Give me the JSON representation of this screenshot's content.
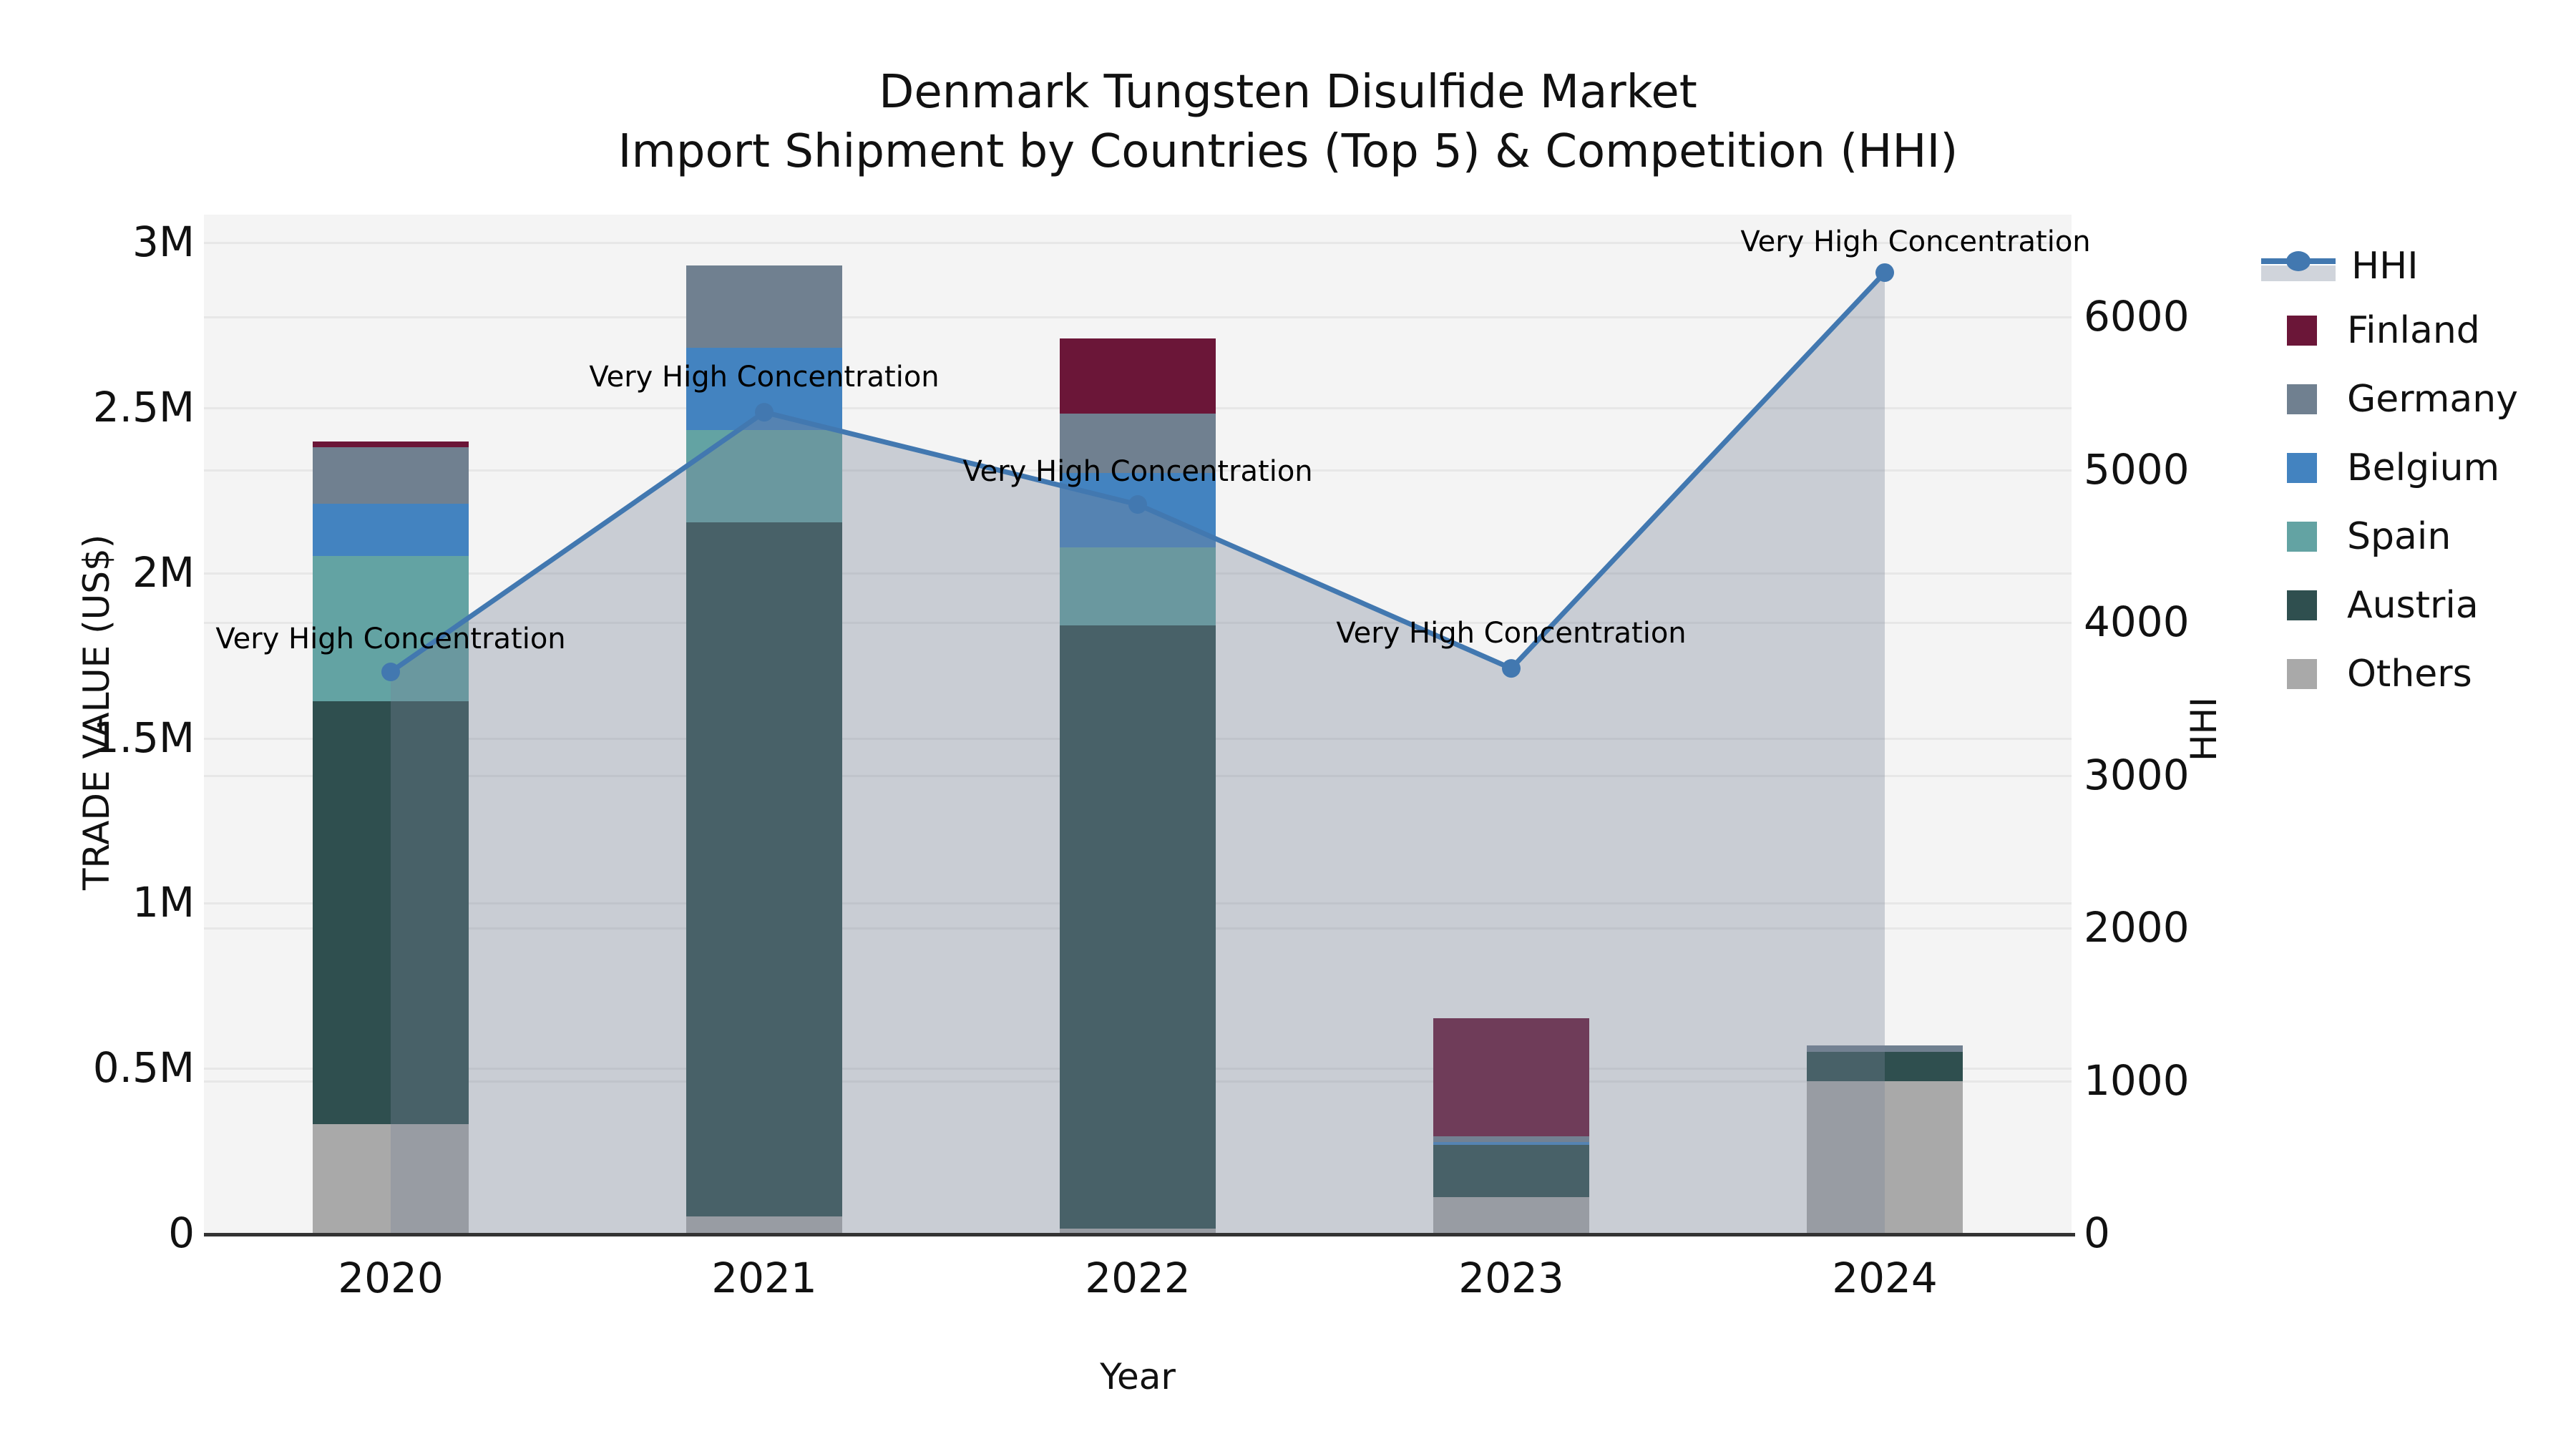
{
  "title_line1": "Denmark Tungsten Disulfide Market",
  "title_line2": "Import Shipment by Countries (Top 5) & Competition (HHI)",
  "axes": {
    "x_label": "Year",
    "y_left_label": "TRADE VALUE (US$)",
    "y_right_label": "HHI",
    "y_left_ticks": [
      "0",
      "0.5M",
      "1M",
      "1.5M",
      "2M",
      "2.5M",
      "3M"
    ],
    "y_left_tick_values": [
      0,
      0.5,
      1,
      1.5,
      2,
      2.5,
      3
    ],
    "y_right_ticks": [
      "0",
      "1000",
      "2000",
      "3000",
      "4000",
      "5000",
      "6000"
    ],
    "y_right_tick_values": [
      0,
      1000,
      2000,
      3000,
      4000,
      5000,
      6000
    ]
  },
  "chart_data": {
    "type": "bar+line",
    "categories": [
      "2020",
      "2021",
      "2022",
      "2023",
      "2024"
    ],
    "bar_unit": "M US$",
    "stack_order_bottom_to_top": [
      "Others",
      "Austria",
      "Spain",
      "Belgium",
      "Germany",
      "Finland"
    ],
    "series": [
      {
        "name": "Finland",
        "values": [
          0.018,
          0,
          0.228,
          0.357,
          0
        ]
      },
      {
        "name": "Germany",
        "values": [
          0.17,
          0.249,
          0.18,
          0.018,
          0.019
        ]
      },
      {
        "name": "Belgium",
        "values": [
          0.158,
          0.249,
          0.225,
          0.009,
          0
        ]
      },
      {
        "name": "Spain",
        "values": [
          0.44,
          0.279,
          0.235,
          0,
          0
        ]
      },
      {
        "name": "Austria",
        "values": [
          1.281,
          2.101,
          1.826,
          0.158,
          0.089
        ]
      },
      {
        "name": "Others",
        "values": [
          0.329,
          0.05,
          0.014,
          0.108,
          0.459
        ]
      }
    ],
    "bar_totals": [
      2.396,
      2.928,
      2.708,
      0.65,
      0.567
    ],
    "line_series": {
      "name": "HHI",
      "values": [
        3672,
        5372,
        4768,
        3695,
        6286
      ],
      "axis": "right"
    },
    "annotation_text": "Very High Concentration",
    "annotations": [
      {
        "year": "2020",
        "label": "Very High Concentration"
      },
      {
        "year": "2021",
        "label": "Very High Concentration"
      },
      {
        "year": "2022",
        "label": "Very High Concentration"
      },
      {
        "year": "2023",
        "label": "Very High Concentration"
      },
      {
        "year": "2024",
        "label": "Very High Concentration"
      }
    ],
    "title": "Denmark Tungsten Disulfide Market",
    "subtitle": "Import Shipment by Countries (Top 5) & Competition (HHI)",
    "xlabel": "Year",
    "ylabel_left": "TRADE VALUE (US$)",
    "ylabel_right": "HHI",
    "ylim_left": [
      0,
      3000000
    ],
    "ylim_right": [
      0,
      6000
    ],
    "grid": true,
    "legend_position": "right"
  },
  "legend": {
    "items": [
      {
        "label": "HHI",
        "type": "line"
      },
      {
        "label": "Finland",
        "type": "swatch"
      },
      {
        "label": "Germany",
        "type": "swatch"
      },
      {
        "label": "Belgium",
        "type": "swatch"
      },
      {
        "label": "Spain",
        "type": "swatch"
      },
      {
        "label": "Austria",
        "type": "swatch"
      },
      {
        "label": "Others",
        "type": "swatch"
      }
    ]
  },
  "colors": {
    "Finland": "#6b1638",
    "Germany": "#708090",
    "Belgium": "#4383c0",
    "Spain": "#63a3a3",
    "Austria": "#2f4f4f",
    "Others": "#a9a9a9",
    "hhi_line": "#4278b0",
    "hhi_area": "rgba(120,132,152,0.35)",
    "plot_background": "#f4f4f4",
    "gridline": "#e7e7e7",
    "axis_line": "#333333"
  }
}
